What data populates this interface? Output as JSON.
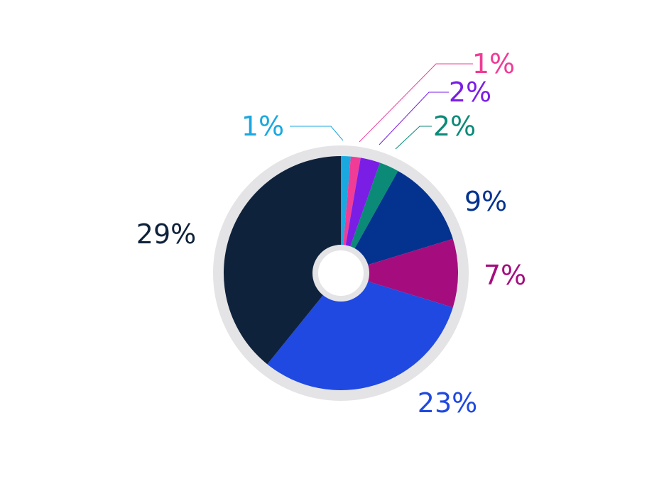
{
  "chart_data": {
    "type": "pie",
    "title": "",
    "slices": [
      {
        "label": "1%",
        "value": 1,
        "color": "#1aa8e0"
      },
      {
        "label": "1%",
        "value": 1,
        "color": "#f03c96"
      },
      {
        "label": "2%",
        "value": 2,
        "color": "#7a1ee6"
      },
      {
        "label": "2%",
        "value": 2,
        "color": "#0b8a78"
      },
      {
        "label": "9%",
        "value": 9,
        "color": "#03338f"
      },
      {
        "label": "7%",
        "value": 7,
        "color": "#a50d7e"
      },
      {
        "label": "23%",
        "value": 23,
        "color": "#1f49e1"
      },
      {
        "label": "29%",
        "value": 29,
        "color": "#0f223b"
      }
    ],
    "ring_color": "#e4e4e6",
    "hole_color": "#ffffff"
  }
}
